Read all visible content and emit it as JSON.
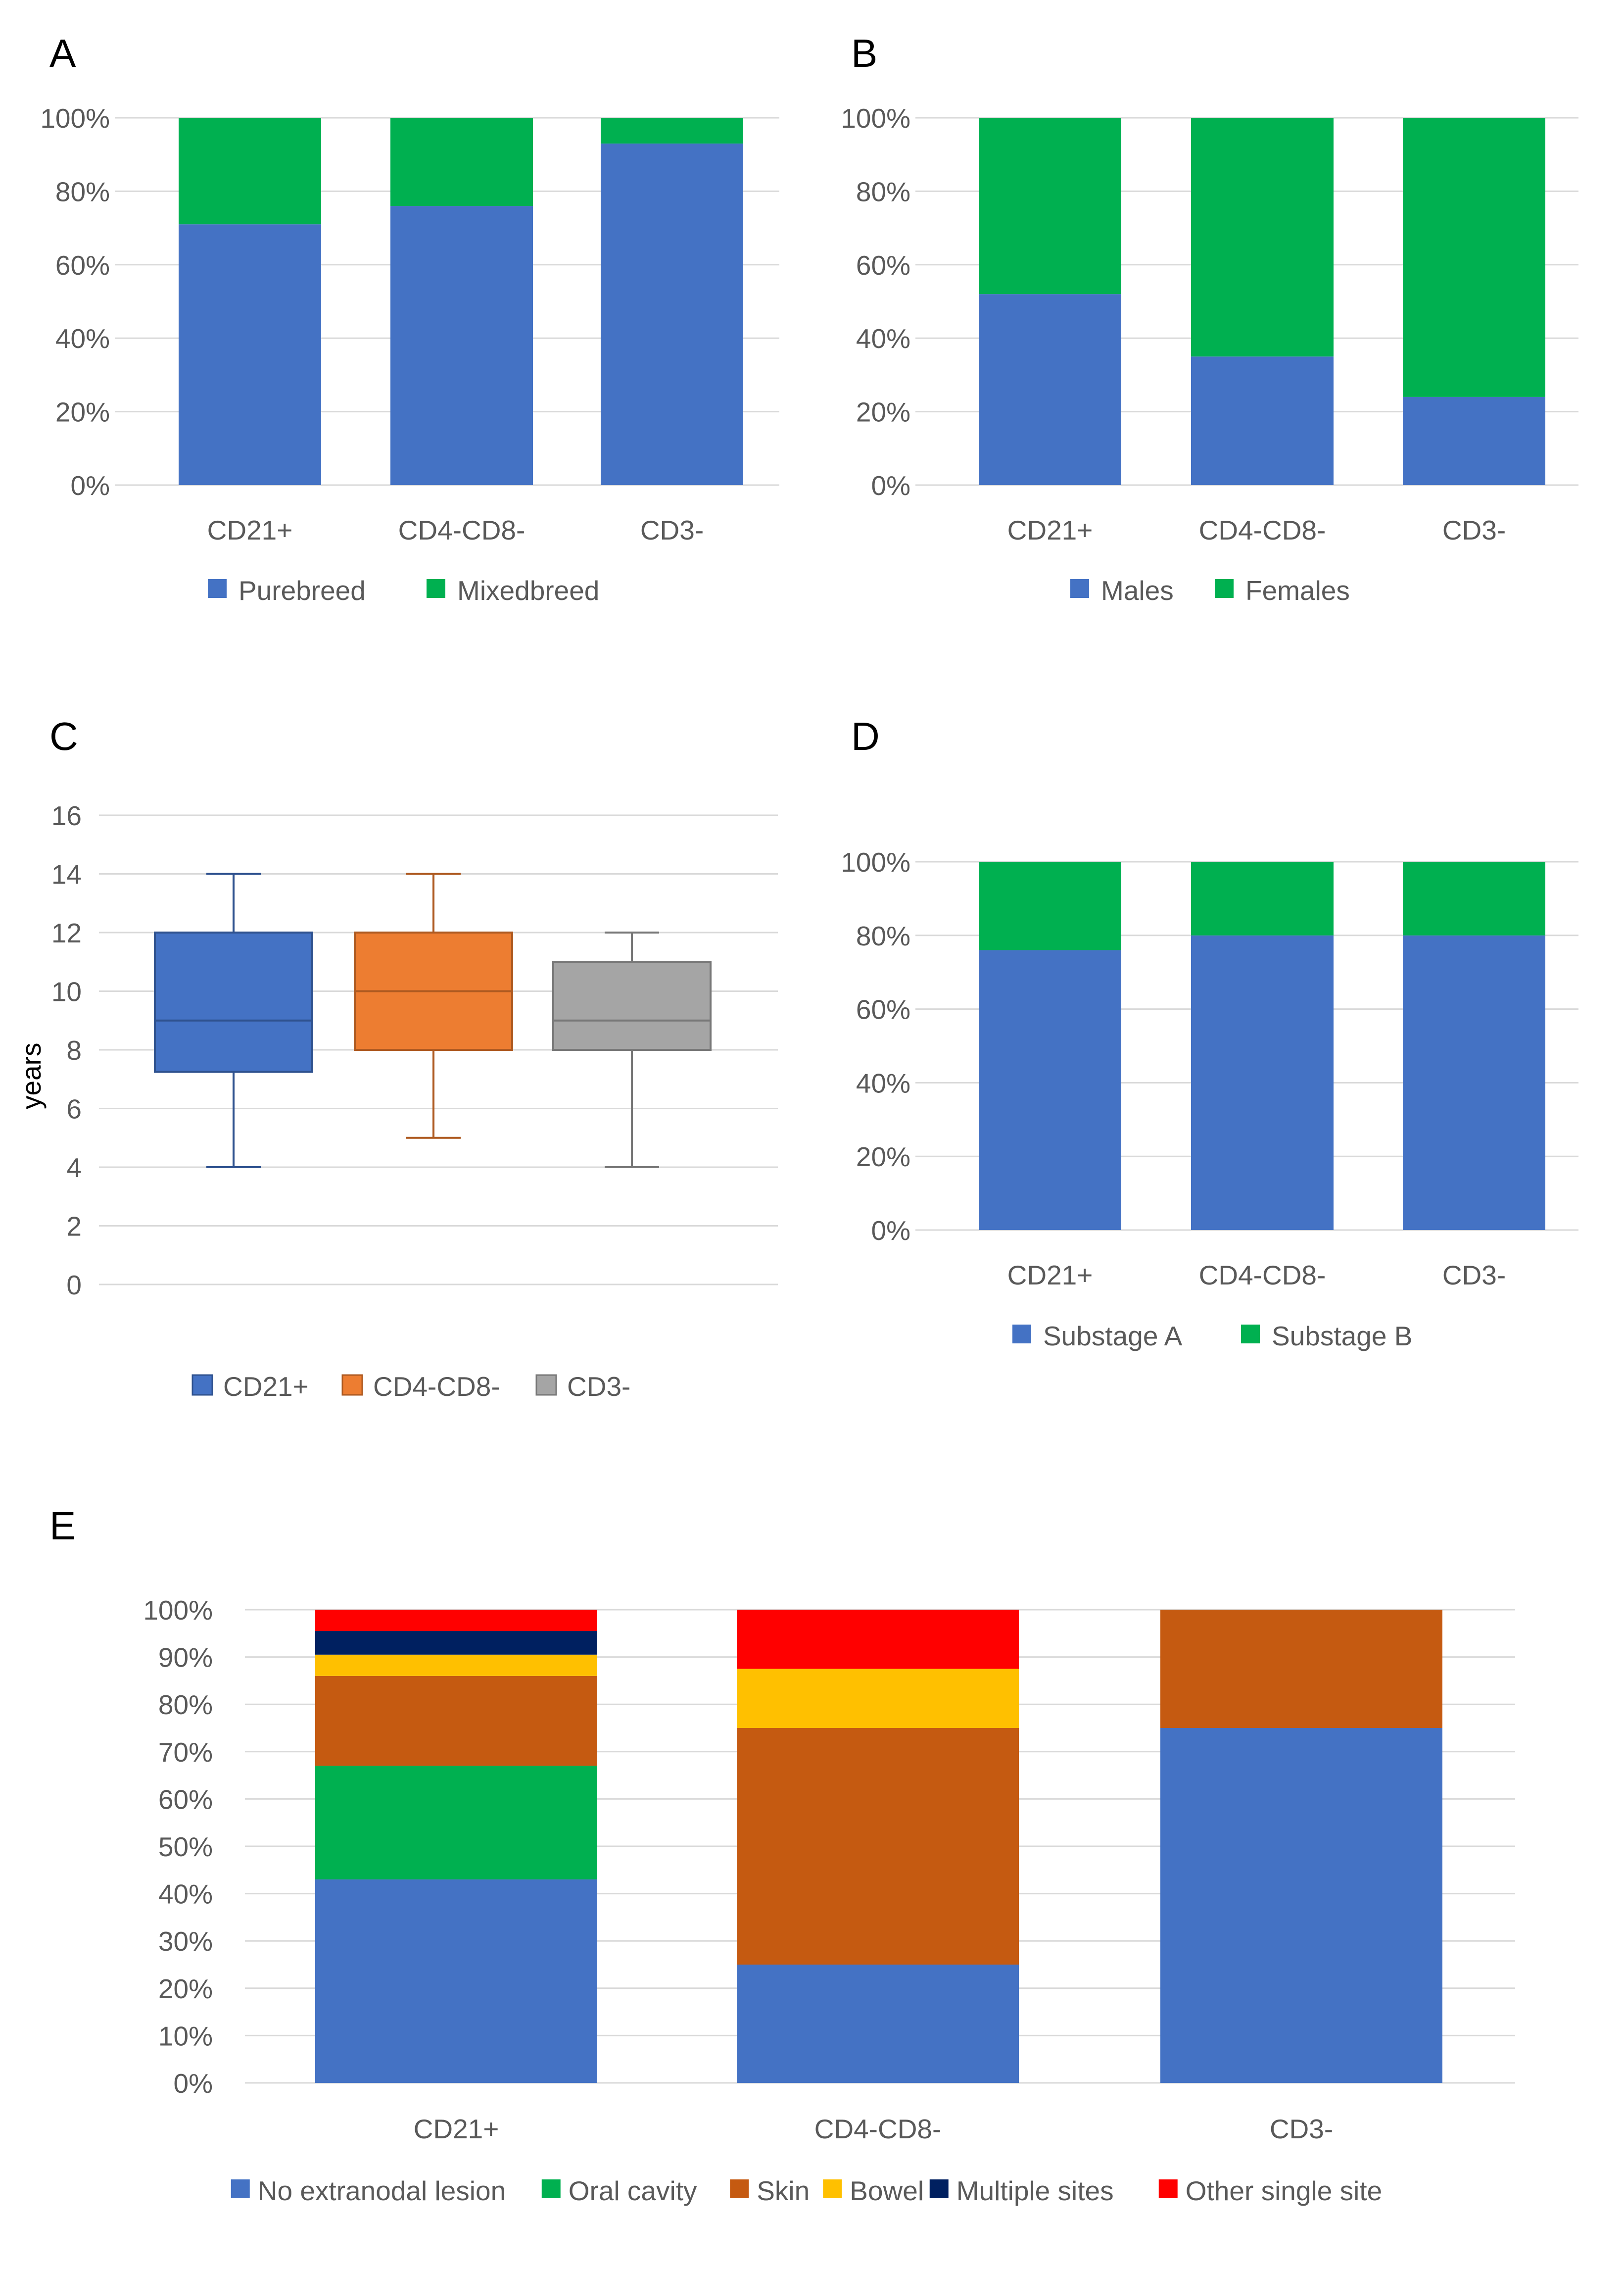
{
  "colors": {
    "blue": "#4472c4",
    "green": "#00b050",
    "orange": "#ed7d31",
    "gray": "#a5a5a5",
    "rust": "#c55a11",
    "yellow": "#ffc000",
    "navy": "#002060",
    "red": "#ff0000",
    "text": "#595959",
    "grid": "#d9d9d9"
  },
  "chart_data": [
    {
      "id": "A",
      "panel_label": "A",
      "type": "bar",
      "stacked": "percent",
      "categories": [
        "CD21+",
        "CD4-CD8-",
        "CD3-"
      ],
      "series": [
        {
          "name": "Purebreed",
          "color": "#4472c4",
          "values": [
            71,
            76,
            93
          ]
        },
        {
          "name": "Mixedbreed",
          "color": "#00b050",
          "values": [
            29,
            24,
            7
          ]
        }
      ],
      "ylim": [
        0,
        100
      ],
      "yticks": [
        "0%",
        "20%",
        "40%",
        "60%",
        "80%",
        "100%"
      ],
      "legend": "bottom"
    },
    {
      "id": "B",
      "panel_label": "B",
      "type": "bar",
      "stacked": "percent",
      "categories": [
        "CD21+",
        "CD4-CD8-",
        "CD3-"
      ],
      "series": [
        {
          "name": "Males",
          "color": "#4472c4",
          "values": [
            52,
            35,
            24
          ]
        },
        {
          "name": "Females",
          "color": "#00b050",
          "values": [
            48,
            65,
            76
          ]
        }
      ],
      "ylim": [
        0,
        100
      ],
      "yticks": [
        "0%",
        "20%",
        "40%",
        "60%",
        "80%",
        "100%"
      ],
      "legend": "bottom"
    },
    {
      "id": "C",
      "panel_label": "C",
      "type": "boxplot",
      "ylabel": "years",
      "ylim": [
        0,
        16
      ],
      "yticks": [
        "0",
        "2",
        "4",
        "6",
        "8",
        "10",
        "12",
        "14",
        "16"
      ],
      "boxes": [
        {
          "name": "CD21+",
          "color": "#4472c4",
          "whisker_color": "#2f528f",
          "min": 4,
          "q1": 7.25,
          "median": 9,
          "q3": 12,
          "max": 14
        },
        {
          "name": "CD4-CD8-",
          "color": "#ed7d31",
          "whisker_color": "#ae5a21",
          "min": 5,
          "q1": 8,
          "median": 10,
          "q3": 12,
          "max": 14
        },
        {
          "name": "CD3-",
          "color": "#a5a5a5",
          "whisker_color": "#787878",
          "min": 4,
          "q1": 8,
          "median": 9,
          "q3": 11,
          "max": 12
        }
      ],
      "legend": "bottom"
    },
    {
      "id": "D",
      "panel_label": "D",
      "type": "bar",
      "stacked": "percent",
      "categories": [
        "CD21+",
        "CD4-CD8-",
        "CD3-"
      ],
      "series": [
        {
          "name": "Substage A",
          "color": "#4472c4",
          "values": [
            76,
            80,
            80
          ]
        },
        {
          "name": "Substage B",
          "color": "#00b050",
          "values": [
            24,
            20,
            20
          ]
        }
      ],
      "ylim": [
        0,
        100
      ],
      "yticks": [
        "0%",
        "20%",
        "40%",
        "60%",
        "80%",
        "100%"
      ],
      "legend": "bottom"
    },
    {
      "id": "E",
      "panel_label": "E",
      "type": "bar",
      "stacked": "percent",
      "categories": [
        "CD21+",
        "CD4-CD8-",
        "CD3-"
      ],
      "series": [
        {
          "name": "No extranodal lesion",
          "color": "#4472c4",
          "values": [
            43,
            25,
            75
          ]
        },
        {
          "name": "Oral cavity",
          "color": "#00b050",
          "values": [
            24,
            0,
            0
          ]
        },
        {
          "name": "Skin",
          "color": "#c55a11",
          "values": [
            19,
            50,
            25
          ]
        },
        {
          "name": "Bowel",
          "color": "#ffc000",
          "values": [
            4.5,
            12.5,
            0
          ]
        },
        {
          "name": "Multiple sites",
          "color": "#002060",
          "values": [
            5,
            0,
            0
          ]
        },
        {
          "name": "Other single site",
          "color": "#ff0000",
          "values": [
            4.5,
            12.5,
            0
          ]
        }
      ],
      "ylim": [
        0,
        100
      ],
      "yticks": [
        "0%",
        "10%",
        "20%",
        "30%",
        "40%",
        "50%",
        "60%",
        "70%",
        "80%",
        "90%",
        "100%"
      ],
      "legend": "bottom"
    }
  ]
}
